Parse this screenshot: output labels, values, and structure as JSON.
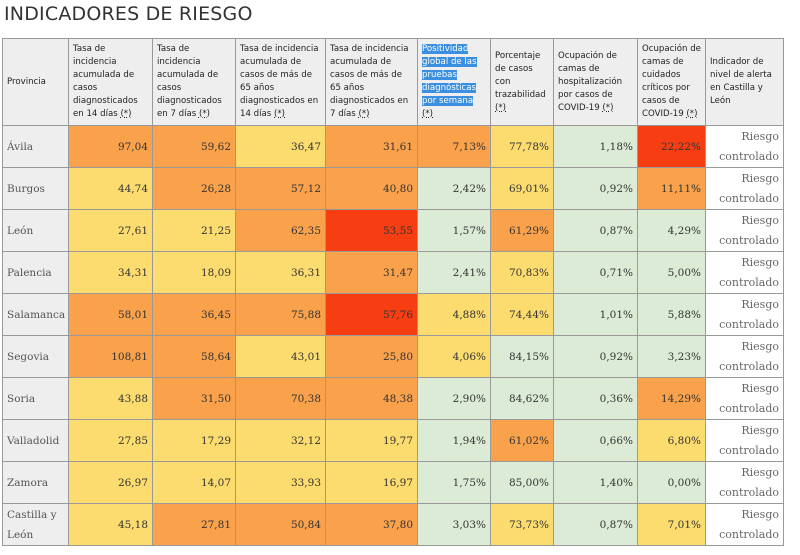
{
  "title": "INDICADORES DE RIESGO",
  "headers": [
    {
      "text": "Provincia",
      "ast": ""
    },
    {
      "text": "Tasa de incidencia acumulada de casos diagnosticados en 14 días ",
      "ast": "(*)"
    },
    {
      "text": "Tasa de incidencia acumulada de casos diagnosticados en 7 días ",
      "ast": "(*)"
    },
    {
      "text": "Tasa de incidencia acumulada de casos de más de 65 años diagnosticados en 14 días ",
      "ast": "(*)"
    },
    {
      "text": "Tasa de incidencia acumulada de casos de más de 65 años diagnosticados en 7 días ",
      "ast": "(*)"
    },
    {
      "text": "Positividad global de las pruebas diagnósticas por semana",
      "ast": "(*)",
      "selected": true
    },
    {
      "text": "Porcentaje de casos con trazabilidad ",
      "ast": "(*)"
    },
    {
      "text": "Ocupación de camas de hospitalización por casos de COVID-19 ",
      "ast": "(*)"
    },
    {
      "text": "Ocupación de camas de cuidados críticos por casos de COVID-19 ",
      "ast": "(*)"
    },
    {
      "text": "Indicador de nivel de alerta en Castilla y León",
      "ast": ""
    }
  ],
  "legend_colors": {
    "O": "#f9a24b",
    "Y": "#fddc6f",
    "G": "#dcebd5",
    "R": "#f63e12"
  },
  "rows": [
    {
      "provincia": "Ávila",
      "values": [
        "97,04",
        "59,62",
        "36,47",
        "31,61",
        "7,13%",
        "77,78%",
        "1,18%",
        "22,22%"
      ],
      "levels": [
        "O",
        "O",
        "Y",
        "O",
        "O",
        "Y",
        "G",
        "R"
      ],
      "alert": "Riesgo controlado"
    },
    {
      "provincia": "Burgos",
      "values": [
        "44,74",
        "26,28",
        "57,12",
        "40,80",
        "2,42%",
        "69,01%",
        "0,92%",
        "11,11%"
      ],
      "levels": [
        "Y",
        "O",
        "O",
        "O",
        "G",
        "Y",
        "G",
        "O"
      ],
      "alert": "Riesgo controlado"
    },
    {
      "provincia": "León",
      "values": [
        "27,61",
        "21,25",
        "62,35",
        "53,55",
        "1,57%",
        "61,29%",
        "0,87%",
        "4,29%"
      ],
      "levels": [
        "Y",
        "Y",
        "O",
        "R",
        "G",
        "O",
        "G",
        "G"
      ],
      "alert": "Riesgo controlado"
    },
    {
      "provincia": "Palencia",
      "values": [
        "34,31",
        "18,09",
        "36,31",
        "31,47",
        "2,41%",
        "70,83%",
        "0,71%",
        "5,00%"
      ],
      "levels": [
        "Y",
        "Y",
        "Y",
        "O",
        "G",
        "Y",
        "G",
        "G"
      ],
      "alert": "Riesgo controlado"
    },
    {
      "provincia": "Salamanca",
      "values": [
        "58,01",
        "36,45",
        "75,88",
        "57,76",
        "4,88%",
        "74,44%",
        "1,01%",
        "5,88%"
      ],
      "levels": [
        "O",
        "O",
        "O",
        "R",
        "Y",
        "Y",
        "G",
        "G"
      ],
      "alert": "Riesgo controlado"
    },
    {
      "provincia": "Segovia",
      "values": [
        "108,81",
        "58,64",
        "43,01",
        "25,80",
        "4,06%",
        "84,15%",
        "0,92%",
        "3,23%"
      ],
      "levels": [
        "O",
        "O",
        "Y",
        "O",
        "Y",
        "G",
        "G",
        "G"
      ],
      "alert": "Riesgo controlado"
    },
    {
      "provincia": "Soria",
      "values": [
        "43,88",
        "31,50",
        "70,38",
        "48,38",
        "2,90%",
        "84,62%",
        "0,36%",
        "14,29%"
      ],
      "levels": [
        "Y",
        "O",
        "O",
        "O",
        "G",
        "G",
        "G",
        "O"
      ],
      "alert": "Riesgo controlado"
    },
    {
      "provincia": "Valladolid",
      "values": [
        "27,85",
        "17,29",
        "32,12",
        "19,77",
        "1,94%",
        "61,02%",
        "0,66%",
        "6,80%"
      ],
      "levels": [
        "Y",
        "Y",
        "Y",
        "Y",
        "G",
        "O",
        "G",
        "Y"
      ],
      "alert": "Riesgo controlado"
    },
    {
      "provincia": "Zamora",
      "values": [
        "26,97",
        "14,07",
        "33,93",
        "16,97",
        "1,75%",
        "85,00%",
        "1,40%",
        "0,00%"
      ],
      "levels": [
        "Y",
        "Y",
        "Y",
        "Y",
        "G",
        "G",
        "G",
        "G"
      ],
      "alert": "Riesgo controlado"
    },
    {
      "provincia": "Castilla y León",
      "values": [
        "45,18",
        "27,81",
        "50,84",
        "37,80",
        "3,03%",
        "73,73%",
        "0,87%",
        "7,01%"
      ],
      "levels": [
        "Y",
        "O",
        "O",
        "O",
        "G",
        "Y",
        "G",
        "Y"
      ],
      "alert": "Riesgo controlado"
    }
  ]
}
